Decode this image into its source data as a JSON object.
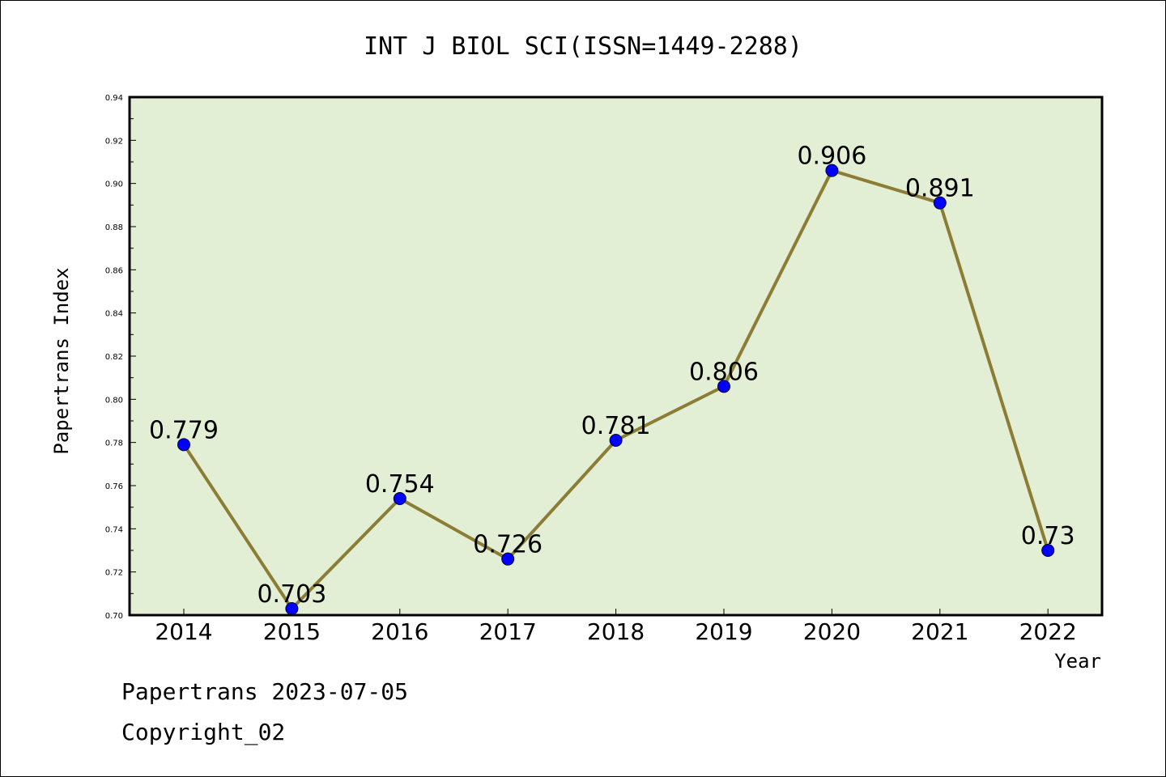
{
  "chart_data": {
    "type": "line",
    "title": "INT J BIOL SCI(ISSN=1449-2288)",
    "xlabel": "Year",
    "ylabel": "Papertrans Index",
    "categories": [
      "2014",
      "2015",
      "2016",
      "2017",
      "2018",
      "2019",
      "2020",
      "2021",
      "2022"
    ],
    "series": [
      {
        "values": [
          0.779,
          0.703,
          0.754,
          0.726,
          0.781,
          0.806,
          0.906,
          0.891,
          0.73
        ],
        "data_labels": [
          "0.779",
          "0.703",
          "0.754",
          "0.726",
          "0.781",
          "0.806",
          "0.906",
          "0.891",
          "0.73"
        ]
      }
    ],
    "ylim": [
      0.7,
      0.94
    ],
    "yticks": [
      "0.70",
      "0.72",
      "0.74",
      "0.76",
      "0.78",
      "0.80",
      "0.82",
      "0.84",
      "0.86",
      "0.88",
      "0.90",
      "0.92",
      "0.94"
    ],
    "grid": false,
    "legend": "none",
    "colors": {
      "plot_background": "#e2efd5",
      "line": "#8b7d36",
      "marker": "#0000ff"
    }
  },
  "footer": {
    "line1": "Papertrans 2023-07-05",
    "line2": "Copyright_02"
  }
}
